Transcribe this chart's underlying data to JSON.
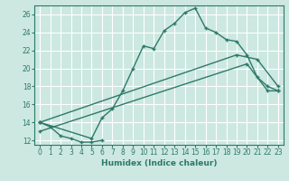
{
  "xlabel": "Humidex (Indice chaleur)",
  "xlim": [
    -0.5,
    23.5
  ],
  "ylim": [
    11.5,
    27.0
  ],
  "xticks": [
    0,
    1,
    2,
    3,
    4,
    5,
    6,
    7,
    8,
    9,
    10,
    11,
    12,
    13,
    14,
    15,
    16,
    17,
    18,
    19,
    20,
    21,
    22,
    23
  ],
  "yticks": [
    12,
    14,
    16,
    18,
    20,
    22,
    24,
    26
  ],
  "background_color": "#cce8e0",
  "grid_color": "#ffffff",
  "line_color": "#2d7a6a",
  "series1_x": [
    0,
    1,
    2,
    3,
    4,
    5,
    6
  ],
  "series1_y": [
    14.0,
    13.5,
    12.5,
    12.2,
    11.8,
    11.8,
    12.0
  ],
  "series2_x": [
    0,
    5,
    6,
    7,
    8,
    9,
    10,
    11,
    12,
    13,
    14,
    15,
    16,
    17,
    18,
    19,
    20,
    21,
    22,
    23
  ],
  "series2_y": [
    14.0,
    12.2,
    14.5,
    15.5,
    17.5,
    20.0,
    22.5,
    22.2,
    24.2,
    25.0,
    26.2,
    26.7,
    24.5,
    24.0,
    23.2,
    23.0,
    21.5,
    19.0,
    18.0,
    17.5
  ],
  "series3_x": [
    0,
    19,
    21,
    23
  ],
  "series3_y": [
    14.0,
    21.5,
    21.0,
    18.0
  ],
  "series4_x": [
    0,
    20,
    22,
    23
  ],
  "series4_y": [
    13.0,
    20.5,
    17.5,
    17.5
  ]
}
